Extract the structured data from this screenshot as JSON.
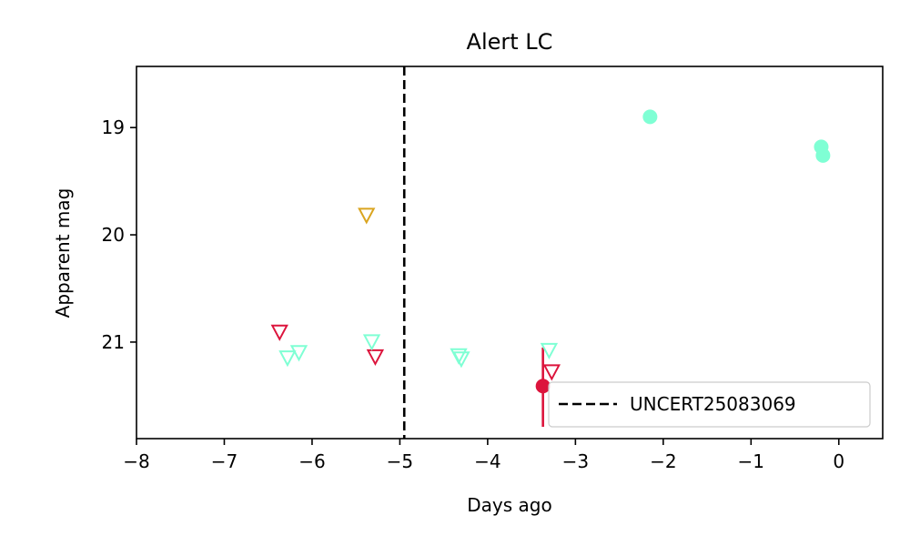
{
  "chart_data": {
    "type": "scatter",
    "title": "Alert LC",
    "xlabel": "Days ago",
    "ylabel": "Apparent mag",
    "xlim": [
      -8,
      0.5
    ],
    "ylim": [
      21.9,
      18.43
    ],
    "y_inverted": true,
    "xticks": [
      -8,
      -7,
      -6,
      -5,
      -4,
      -3,
      -2,
      -1,
      0
    ],
    "xtick_labels": [
      "−8",
      "−7",
      "−6",
      "−5",
      "−4",
      "−3",
      "−2",
      "−1",
      "0"
    ],
    "yticks": [
      19,
      20,
      21
    ],
    "ytick_labels": [
      "19",
      "20",
      "21"
    ],
    "legend_position": "lower-right",
    "vline": {
      "x": -4.95,
      "style": "dashed",
      "color": "#000000",
      "label": "UNCERT25083069"
    },
    "series": [
      {
        "marker": "circle",
        "color": "#7fffd4",
        "points": [
          {
            "x": -2.15,
            "y": 18.9
          },
          {
            "x": -0.2,
            "y": 19.18
          },
          {
            "x": -0.18,
            "y": 19.26
          }
        ]
      },
      {
        "marker": "circle",
        "color": "#dc143c",
        "points": [
          {
            "x": -3.37,
            "y": 21.41,
            "yerr_low": 0.36,
            "yerr_high": 0.38
          }
        ]
      },
      {
        "marker": "triangle-down-open",
        "color": "#dc143c",
        "points": [
          {
            "x": -6.37,
            "y": 20.91
          },
          {
            "x": -5.28,
            "y": 21.14
          },
          {
            "x": -3.27,
            "y": 21.28
          }
        ]
      },
      {
        "marker": "triangle-down-open",
        "color": "#7fffd4",
        "points": [
          {
            "x": -6.28,
            "y": 21.15
          },
          {
            "x": -6.15,
            "y": 21.1
          },
          {
            "x": -5.32,
            "y": 21.0
          },
          {
            "x": -4.33,
            "y": 21.13
          },
          {
            "x": -4.3,
            "y": 21.16
          },
          {
            "x": -3.3,
            "y": 21.08
          }
        ]
      },
      {
        "marker": "triangle-down-open",
        "color": "#daa520",
        "points": [
          {
            "x": -5.38,
            "y": 19.82
          }
        ]
      }
    ]
  }
}
